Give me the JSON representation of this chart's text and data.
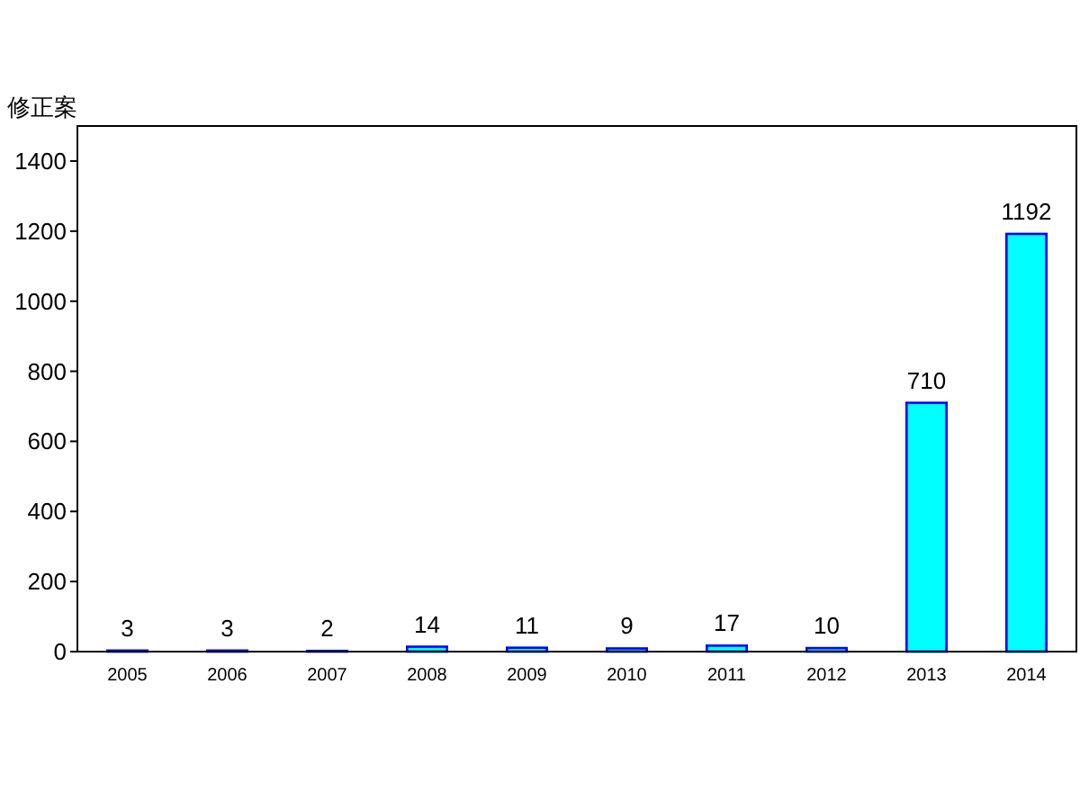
{
  "chart_data": {
    "type": "bar",
    "ylabel": "修正案",
    "categories": [
      "2005",
      "2006",
      "2007",
      "2008",
      "2009",
      "2010",
      "2011",
      "2012",
      "2013",
      "2014"
    ],
    "values": [
      3,
      3,
      2,
      14,
      11,
      9,
      17,
      10,
      710,
      1192
    ],
    "color": "#00ffff",
    "ylim": [
      0,
      1500
    ],
    "yticks": [
      0,
      200,
      400,
      600,
      800,
      1000,
      1200,
      1400
    ],
    "data_labels": true
  }
}
